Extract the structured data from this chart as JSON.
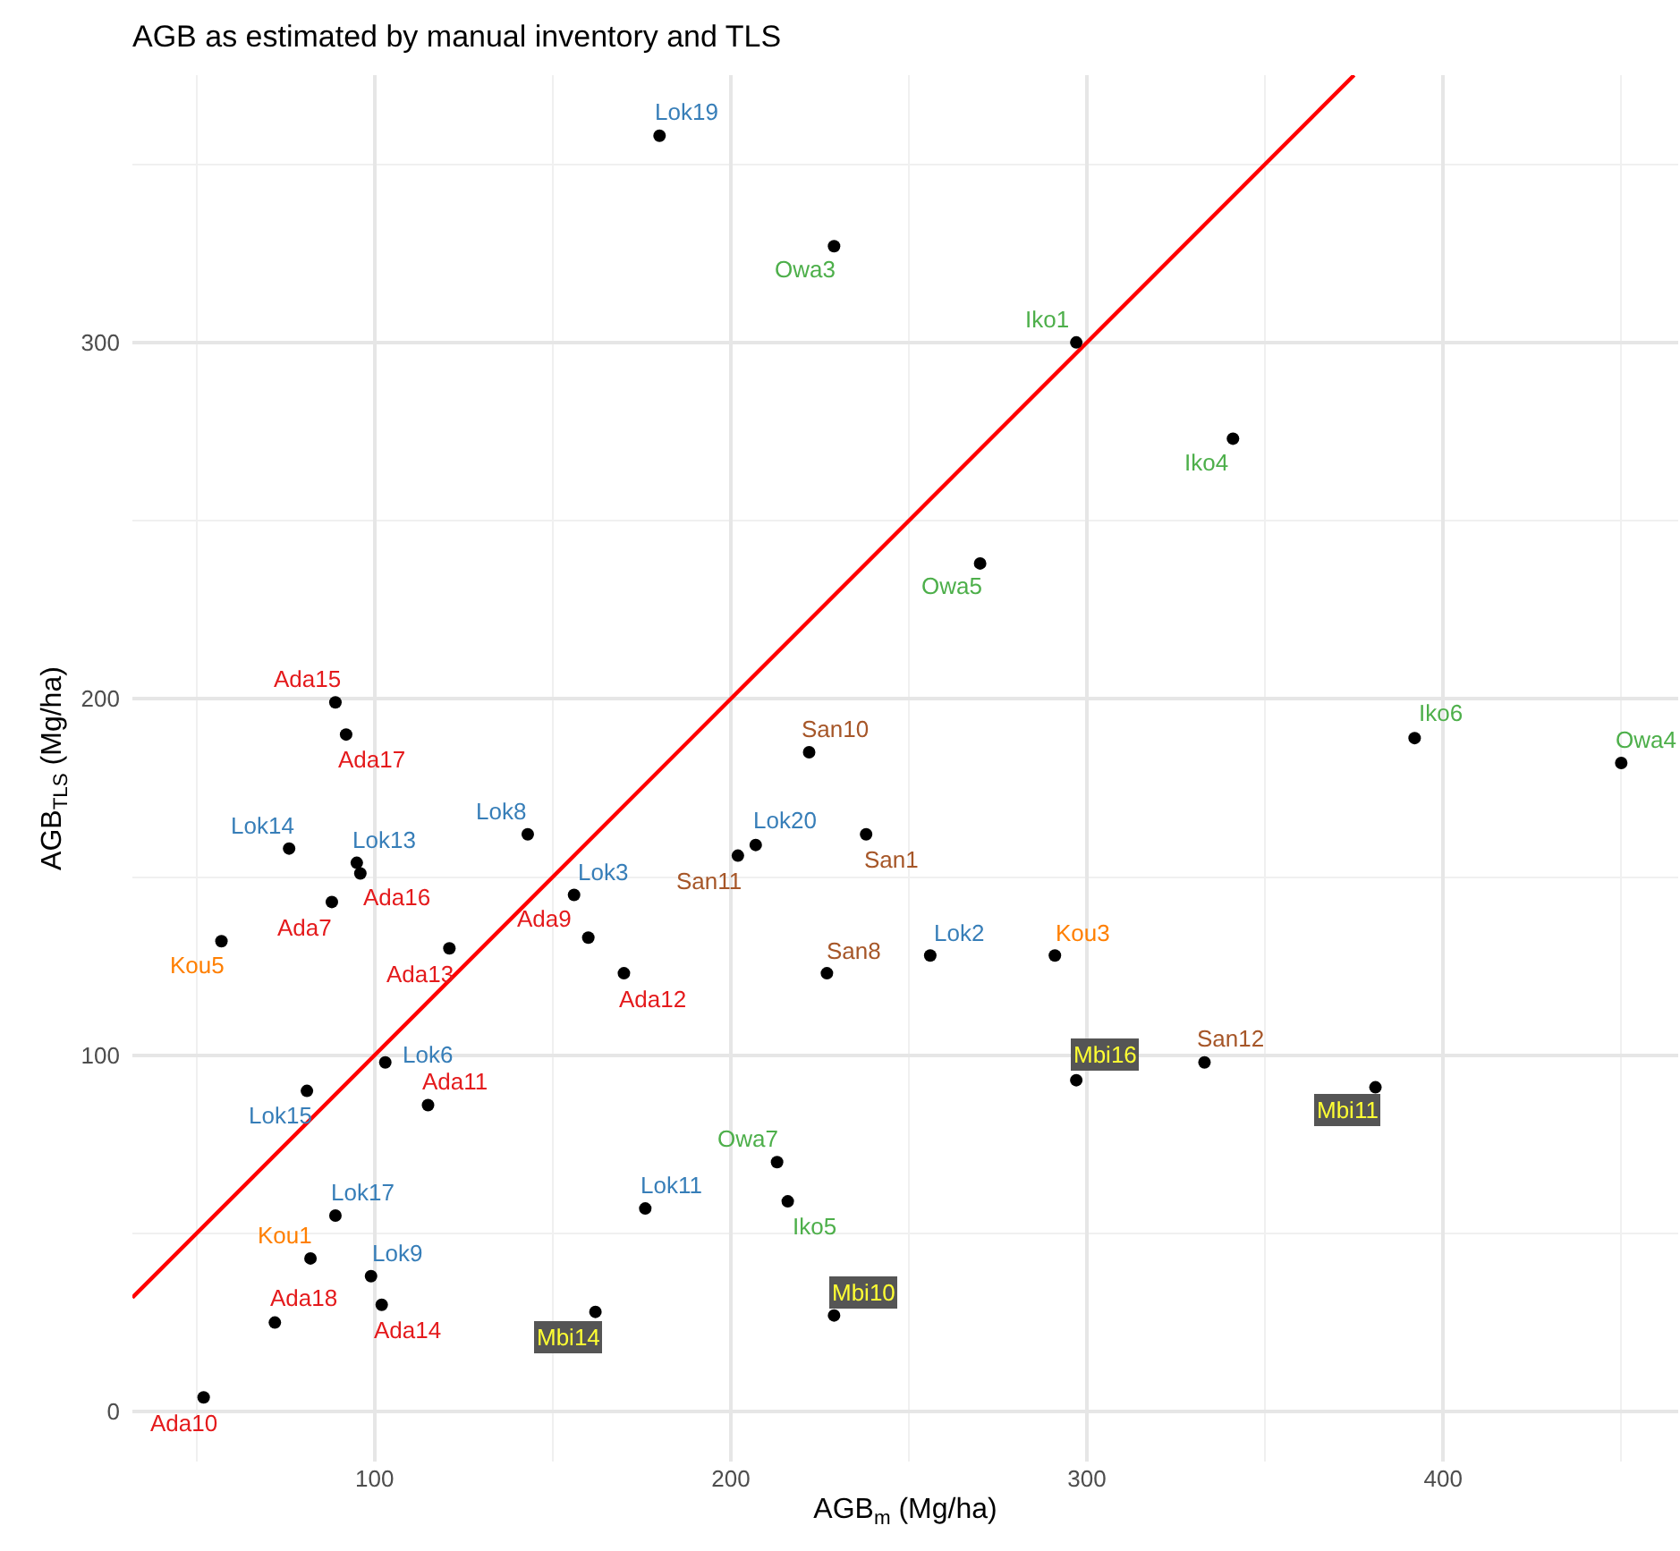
{
  "chart_data": {
    "type": "scatter",
    "title": "AGB as estimated by manual inventory and TLS",
    "xlabel": "AGB$_{m}$ (Mg/ha)",
    "ylabel": "AGB$_{TLS}$ (Mg/ha)",
    "xlim": [
      32,
      466
    ],
    "ylim": [
      -14,
      375
    ],
    "xticks": [
      100,
      200,
      300,
      400
    ],
    "yticks": [
      0,
      100,
      200,
      300
    ],
    "grid": true,
    "marker": "circle",
    "series": [
      {
        "color": "#e41a1c",
        "x": [
          89,
          92,
          96,
          88,
          160,
          121,
          170,
          115,
          102,
          72,
          52
        ],
        "values": [
          199,
          190,
          151,
          143,
          133,
          130,
          123,
          86,
          30,
          25,
          4
        ],
        "colors": [
          "#000000",
          "#000000",
          "#000000",
          "#000000",
          "#000000",
          "#000000",
          "#000000",
          "#000000",
          "#000000",
          "#000000",
          "#000000"
        ],
        "value_labels": [
          "Ada15",
          "Ada17",
          "Ada16",
          "Ada7",
          "Ada9",
          "Ada13",
          "Ada12",
          "Ada11",
          "Ada14",
          "Ada18",
          "Ada10"
        ]
      },
      {
        "color": "#377eb8",
        "x": [
          180,
          76,
          95,
          143,
          156,
          207,
          256,
          103,
          81,
          176,
          89,
          99
        ],
        "values": [
          358,
          158,
          154,
          162,
          145,
          159,
          128,
          98,
          90,
          57,
          55,
          38
        ],
        "colors": [
          "#000000",
          "#000000",
          "#000000",
          "#000000",
          "#000000",
          "#000000",
          "#000000",
          "#000000",
          "#000000",
          "#000000",
          "#000000",
          "#000000"
        ],
        "value_labels": [
          "Lok19",
          "Lok14",
          "Lok13",
          "Lok8",
          "Lok3",
          "Lok20",
          "Lok2",
          "Lok6",
          "Lok15",
          "Lok11",
          "Lok17",
          "Lok9"
        ]
      },
      {
        "color": "#a65628",
        "x": [
          202,
          222,
          227,
          238,
          333
        ],
        "values": [
          156,
          185,
          123,
          162,
          98
        ],
        "colors": [
          "#000000",
          "#000000",
          "#000000",
          "#000000",
          "#000000"
        ],
        "value_labels": [
          "San11",
          "San10",
          "San8",
          "San1",
          "San12"
        ]
      },
      {
        "color": "#4daf4a",
        "x": [
          229,
          270,
          450,
          213
        ],
        "values": [
          327,
          238,
          182,
          70
        ],
        "colors": [
          "#000000",
          "#000000",
          "#000000",
          "#000000"
        ],
        "value_labels": [
          "Owa3",
          "Owa5",
          "Owa4",
          "Owa7"
        ]
      },
      {
        "color": "#4daf4a",
        "x": [
          297,
          341,
          392,
          216
        ],
        "values": [
          300,
          273,
          189,
          59
        ],
        "colors": [
          "#000000",
          "#000000",
          "#000000",
          "#000000"
        ],
        "value_labels": [
          "Iko1",
          "Iko4",
          "Iko6",
          "Iko5"
        ]
      },
      {
        "color": "#ff7f00",
        "x": [
          57,
          291,
          82
        ],
        "values": [
          132,
          128,
          43
        ],
        "colors": [
          "#000000",
          "#000000",
          "#000000"
        ],
        "value_labels": [
          "Kou5",
          "Kou3",
          "Kou1"
        ]
      },
      {
        "color": "#ffff33",
        "x": [
          297,
          381,
          229,
          162
        ],
        "values": [
          93,
          91,
          27,
          28
        ],
        "colors": [
          "#000000",
          "#000000",
          "#000000",
          "#000000"
        ],
        "value_labels": [
          "Mbi16",
          "Mbi11",
          "Mbi10",
          "Mbi14"
        ]
      },
      {
        "type": "line",
        "marker": "none",
        "color": "#ff0000",
        "x": [
          32,
          375
        ],
        "values": [
          32,
          375
        ]
      }
    ]
  }
}
